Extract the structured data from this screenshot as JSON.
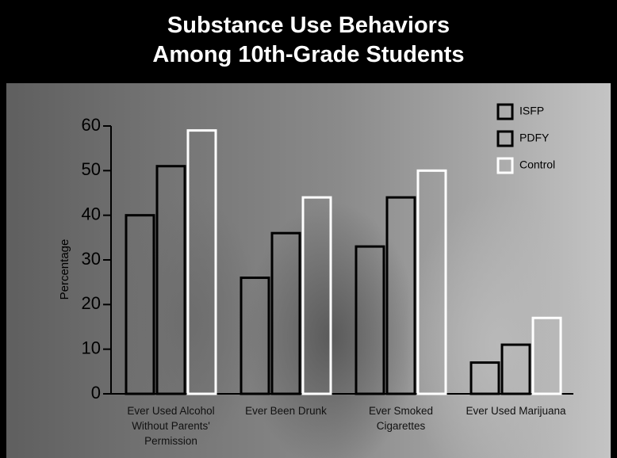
{
  "chart_data": {
    "type": "bar",
    "title": "Substance Use Behaviors Among 10th-Grade Students",
    "y_label": "Percentage",
    "categories": [
      "Ever Used Alcohol Without Parents' Permission",
      "Ever Been Drunk",
      "Ever Smoked Cigarettes",
      "Ever Used Marijuana"
    ],
    "series": [
      {
        "name": "ISFP",
        "color": "#000000",
        "values": [
          40,
          26,
          33,
          7
        ]
      },
      {
        "name": "PDFY",
        "color": "#000000",
        "values": [
          51,
          36,
          44,
          11
        ]
      },
      {
        "name": "Control",
        "color": "#ffffff",
        "values": [
          59,
          44,
          50,
          17
        ]
      }
    ],
    "ylim": [
      0,
      60
    ],
    "yticks": [
      0,
      10,
      20,
      30,
      40,
      50,
      60
    ],
    "legend": "upper right"
  }
}
